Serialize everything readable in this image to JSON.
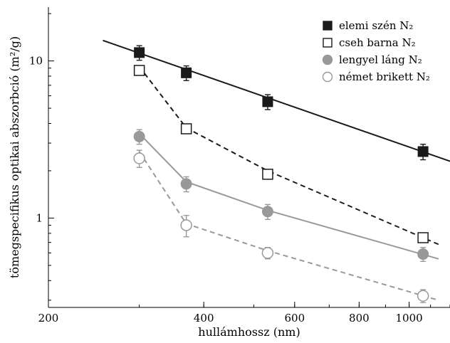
{
  "chart_data": {
    "type": "line",
    "xscale": "log",
    "yscale": "log",
    "xlabel": "hullámhossz (nm)",
    "ylabel": "tömegspecifikus optikai abszorbció (m²/g)",
    "xlim": [
      200,
      1200
    ],
    "ylim": [
      0.27,
      22
    ],
    "x_ticks": [
      {
        "value": 200,
        "label": "200"
      },
      {
        "value": 400,
        "label": "400"
      },
      {
        "value": 600,
        "label": "600"
      },
      {
        "value": 800,
        "label": "800"
      },
      {
        "value": 1000,
        "label": "1000"
      }
    ],
    "y_ticks": [
      {
        "value": 1,
        "label": "1"
      },
      {
        "value": 10,
        "label": "10"
      }
    ],
    "legend_position": "top-right",
    "series": [
      {
        "name": "elemi szén N₂",
        "color": "#1a1a1a",
        "marker": "square-filled",
        "line_style": "solid",
        "points": [
          [
            300,
            11.3
          ],
          [
            370,
            8.4
          ],
          [
            532,
            5.5
          ],
          [
            1064,
            2.65
          ]
        ],
        "errors": [
          1.2,
          0.9,
          0.6,
          0.3
        ],
        "fit_line": [
          [
            255,
            13.5
          ],
          [
            1200,
            2.3
          ]
        ]
      },
      {
        "name": "cseh barna N₂",
        "color": "#1a1a1a",
        "marker": "square-open",
        "line_style": "dashed",
        "points": [
          [
            300,
            8.7
          ],
          [
            370,
            3.7
          ],
          [
            532,
            1.9
          ],
          [
            1064,
            0.75
          ]
        ],
        "errors": [
          0.3,
          0.25,
          0.08,
          0.04
        ],
        "fit_line": [
          [
            300,
            9.2
          ],
          [
            370,
            3.75
          ],
          [
            532,
            2.0
          ],
          [
            1140,
            0.68
          ]
        ]
      },
      {
        "name": "lengyel láng N₂",
        "color": "#999999",
        "marker": "circle-filled",
        "line_style": "solid",
        "points": [
          [
            300,
            3.3
          ],
          [
            370,
            1.65
          ],
          [
            532,
            1.1
          ],
          [
            1064,
            0.59
          ]
        ],
        "errors": [
          0.35,
          0.18,
          0.12,
          0.06
        ],
        "fit_line": [
          [
            300,
            3.45
          ],
          [
            370,
            1.7
          ],
          [
            532,
            1.12
          ],
          [
            1140,
            0.55
          ]
        ]
      },
      {
        "name": "német brikett N₂",
        "color": "#999999",
        "marker": "circle-open",
        "line_style": "dashed",
        "points": [
          [
            300,
            2.4
          ],
          [
            370,
            0.9
          ],
          [
            532,
            0.6
          ],
          [
            1064,
            0.32
          ]
        ],
        "errors": [
          0.3,
          0.14,
          0.05,
          0.03
        ],
        "fit_line": [
          [
            300,
            2.65
          ],
          [
            370,
            0.92
          ],
          [
            532,
            0.62
          ],
          [
            1140,
            0.3
          ]
        ]
      }
    ]
  }
}
